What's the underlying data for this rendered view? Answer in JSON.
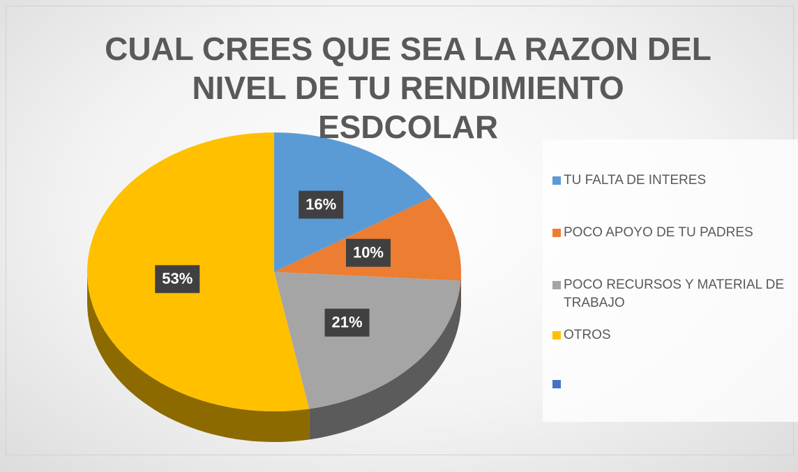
{
  "chart_data": {
    "type": "pie",
    "title": "CUAL CREES QUE SEA LA RAZON DEL NIVEL DE TU RENDIMIENTO ESDCOLAR",
    "categories": [
      "TU FALTA DE INTERES",
      "POCO APOYO DE TU PADRES",
      "POCO RECURSOS Y MATERIAL DE TRABAJO",
      "OTROS",
      null
    ],
    "values": [
      16,
      10,
      21,
      53,
      0
    ],
    "value_labels": [
      "16%",
      "10%",
      "21%",
      "53%",
      null
    ],
    "colors": [
      "#5b9bd5",
      "#ed7d31",
      "#a5a5a5",
      "#ffc000",
      "#4472c4"
    ],
    "legend": "right"
  }
}
